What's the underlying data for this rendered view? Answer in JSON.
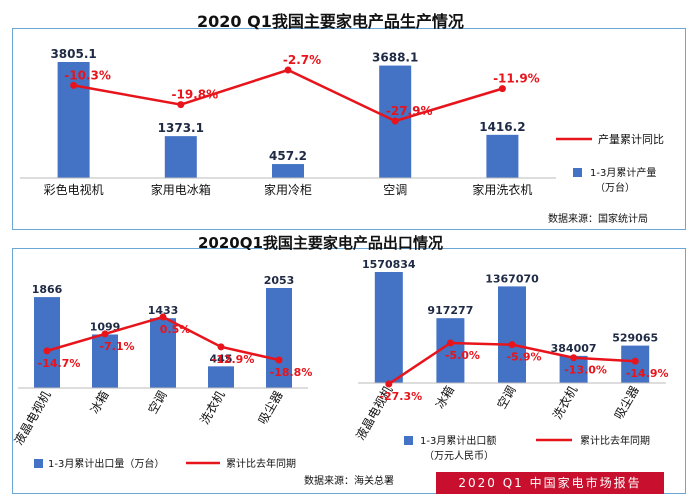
{
  "colors": {
    "bar": "#4472c4",
    "line": "#e8141c",
    "pct": "#e8141c",
    "value": "#1f2a44",
    "panel_border": "#6aa6d6",
    "banner": "#c8102e"
  },
  "chart_data": [
    {
      "type": "bar",
      "title": "2020 Q1我国主要家电产品生产情况",
      "categories": [
        "彩色电视机",
        "家用电冰箱",
        "家用冷柜",
        "空调",
        "家用洗衣机"
      ],
      "series": [
        {
          "name": "1-3月累计产量（万台）",
          "values": [
            3805.1,
            1373.1,
            457.2,
            3688.1,
            1416.2
          ],
          "value_labels": [
            "3805.1",
            "1373.1",
            "457.2",
            "3688.1",
            "1416.2"
          ]
        },
        {
          "name": "产量累计同比",
          "values": [
            -10.3,
            -19.8,
            -2.7,
            -27.9,
            -11.9
          ],
          "value_labels": [
            "-10.3%",
            "-19.8%",
            "-2.7%",
            "-27.9%",
            "-11.9%"
          ]
        }
      ],
      "legend": {
        "line": "产量累计同比",
        "bar_line1": "1-3月累计产量",
        "bar_line2": "（万台）"
      },
      "source": "数据来源：国家统计局"
    },
    {
      "type": "bar",
      "title": "2020Q1我国主要家电产品出口情况",
      "categories": [
        "液晶电视机",
        "冰箱",
        "空调",
        "洗衣机",
        "吸尘器"
      ],
      "series": [
        {
          "name": "1-3月累计出口量（万台）",
          "values": [
            1866,
            1099,
            1433,
            445,
            2053
          ],
          "value_labels": [
            "1866",
            "1099",
            "1433",
            "445",
            "2053"
          ]
        },
        {
          "name": "累计比去年同期",
          "values": [
            -14.7,
            -7.1,
            0.5,
            -12.9,
            -18.8
          ],
          "value_labels": [
            "-14.7%",
            "-7.1%",
            "0.5%",
            "-12.9%",
            "-18.8%"
          ]
        }
      ],
      "legend": {
        "bar": "1-3月累计出口量（万台）",
        "line": "累计比去年同期"
      },
      "source": "数据来源：海关总署"
    },
    {
      "type": "bar",
      "categories": [
        "液晶电视机",
        "冰箱",
        "空调",
        "洗衣机",
        "吸尘器"
      ],
      "series": [
        {
          "name": "1-3月累计出口额（万元人民币）",
          "values": [
            1570834,
            917277,
            1367070,
            384007,
            529065
          ],
          "value_labels": [
            "1570834",
            "917277",
            "1367070",
            "384007",
            "529065"
          ]
        },
        {
          "name": "累计比去年同期",
          "values": [
            -27.3,
            -5.0,
            -5.9,
            -13.0,
            -14.9
          ],
          "value_labels": [
            "-27.3%",
            "-5.0%",
            "-5.9%",
            "-13.0%",
            "-14.9%"
          ]
        }
      ],
      "legend": {
        "bar_line1": "1-3月累计出口额",
        "bar_line2": "（万元人民币）",
        "line": "累计比去年同期"
      }
    }
  ],
  "footer": {
    "banner": "2020 Q1 中国家电市场报告"
  }
}
